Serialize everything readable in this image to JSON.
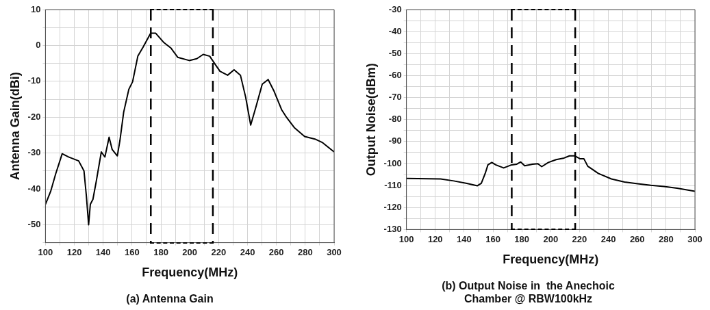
{
  "chart_data": [
    {
      "type": "line",
      "title": "(a) Antenna Gain",
      "xlabel": "Frequency(MHz)",
      "ylabel": "Antenna Gain(dBi)",
      "x": [
        100,
        103.6,
        107.1,
        111.6,
        116,
        123,
        126.7,
        128.4,
        129.9,
        131.1,
        132.9,
        135.2,
        138.7,
        141.2,
        144.1,
        146.2,
        149.8,
        151.6,
        154.2,
        157.8,
        160.4,
        164,
        167.6,
        172.9,
        176.4,
        181.8,
        187.1,
        191.6,
        199.6,
        204.9,
        209.3,
        213.8,
        217.3,
        220.9,
        226.2,
        230.7,
        235.1,
        238.7,
        242.2,
        245.8,
        250.2,
        254.3,
        258.2,
        263.6,
        267.1,
        272.4,
        279.6,
        286.7,
        292,
        300
      ],
      "series": [
        {
          "color": "#000000",
          "values": [
            -44.3,
            -40.7,
            -35.8,
            -30.2,
            -31.1,
            -32.2,
            -35,
            -42.2,
            -50,
            -44.3,
            -42.9,
            -37.9,
            -29.7,
            -31.1,
            -25.6,
            -29,
            -30.8,
            -26.5,
            -18.6,
            -12.2,
            -10.1,
            -3,
            -0.5,
            3.4,
            3.4,
            0.9,
            -0.8,
            -3.3,
            -4.2,
            -3.7,
            -2.5,
            -3,
            -5.1,
            -7.2,
            -8.3,
            -6.8,
            -8.3,
            -14.4,
            -22.2,
            -17.2,
            -10.8,
            -9.5,
            -12.6,
            -17.9,
            -20.1,
            -22.9,
            -25.4,
            -26.1,
            -27.1,
            -29.7
          ]
        }
      ],
      "xlim": [
        100,
        300
      ],
      "ylim": [
        -55,
        10
      ],
      "xticks": [
        100,
        {
          "value": 110,
          "label": null
        },
        120,
        {
          "value": 130,
          "label": null
        },
        140,
        {
          "value": 150,
          "label": null
        },
        160,
        {
          "value": 170,
          "label": null
        },
        180,
        {
          "value": 190,
          "label": null
        },
        200,
        {
          "value": 210,
          "label": null
        },
        220,
        {
          "value": 230,
          "label": null
        },
        240,
        {
          "value": 250,
          "label": null
        },
        260,
        {
          "value": 270,
          "label": null
        },
        280,
        {
          "value": 290,
          "label": null
        },
        300
      ],
      "yticks": [
        {
          "value": -55,
          "label": null
        },
        -50,
        {
          "value": -45,
          "label": null
        },
        -40,
        {
          "value": -35,
          "label": null
        },
        -30,
        {
          "value": -25,
          "label": null
        },
        -20,
        {
          "value": -15,
          "label": null
        },
        -10,
        {
          "value": -5,
          "label": null
        },
        0,
        {
          "value": 5,
          "label": null
        },
        10
      ],
      "grid": true,
      "legend": false,
      "marker": "none",
      "line_style": "solid",
      "ref_lines": [
        {
          "axis": "x",
          "value": 173,
          "color": "#000000",
          "line_style": "dashed"
        },
        {
          "axis": "x",
          "value": 216,
          "color": "#000000",
          "line_style": "dashed"
        }
      ]
    },
    {
      "type": "line",
      "title": "(b) Output Noise in  the Anechoic Chamber @ RBW100kHz",
      "xlabel": "Frequency(MHz)",
      "ylabel": "Output Noise(dBm)",
      "x": [
        100,
        123.7,
        132.8,
        141.9,
        149.2,
        151.9,
        154.6,
        156.5,
        159.2,
        161.9,
        167.4,
        172.9,
        176.5,
        179.2,
        182,
        187.4,
        191.1,
        193.8,
        198.4,
        203.8,
        209.3,
        213,
        216.6,
        220.2,
        223,
        225.7,
        233,
        242.1,
        251.2,
        260.3,
        269.4,
        278.5,
        287.6,
        300
      ],
      "series": [
        {
          "color": "#000000",
          "values": [
            -106.8,
            -107,
            -107.9,
            -109,
            -110.1,
            -109,
            -104.5,
            -100.6,
            -99.5,
            -100.6,
            -102,
            -100.6,
            -100.3,
            -99.3,
            -101,
            -100.3,
            -100.1,
            -101.4,
            -99.5,
            -98.2,
            -97.5,
            -96.5,
            -96.5,
            -97.8,
            -97.8,
            -101.2,
            -104.5,
            -107,
            -108.4,
            -109.2,
            -109.9,
            -110.4,
            -111.2,
            -112.6
          ]
        }
      ],
      "xlim": [
        100,
        300
      ],
      "ylim": [
        -130,
        -30
      ],
      "xticks": [
        100,
        {
          "value": 110,
          "label": null
        },
        120,
        {
          "value": 130,
          "label": null
        },
        140,
        {
          "value": 150,
          "label": null
        },
        160,
        {
          "value": 170,
          "label": null
        },
        180,
        {
          "value": 190,
          "label": null
        },
        200,
        {
          "value": 210,
          "label": null
        },
        220,
        {
          "value": 230,
          "label": null
        },
        240,
        {
          "value": 250,
          "label": null
        },
        260,
        {
          "value": 270,
          "label": null
        },
        280,
        {
          "value": 290,
          "label": null
        },
        300
      ],
      "yticks": [
        -130,
        {
          "value": -125,
          "label": null
        },
        -120,
        {
          "value": -115,
          "label": null
        },
        -110,
        {
          "value": -105,
          "label": null
        },
        -100,
        {
          "value": -95,
          "label": null
        },
        -90,
        {
          "value": -85,
          "label": null
        },
        -80,
        {
          "value": -75,
          "label": null
        },
        -70,
        {
          "value": -65,
          "label": null
        },
        -60,
        {
          "value": -55,
          "label": null
        },
        -50,
        {
          "value": -45,
          "label": null
        },
        -40,
        {
          "value": -35,
          "label": null
        },
        -30
      ],
      "grid": true,
      "legend": false,
      "marker": "none",
      "line_style": "solid",
      "ref_lines": [
        {
          "axis": "x",
          "value": 173,
          "color": "#000000",
          "line_style": "dashed"
        },
        {
          "axis": "x",
          "value": 217,
          "color": "#000000",
          "line_style": "dashed"
        }
      ]
    }
  ]
}
